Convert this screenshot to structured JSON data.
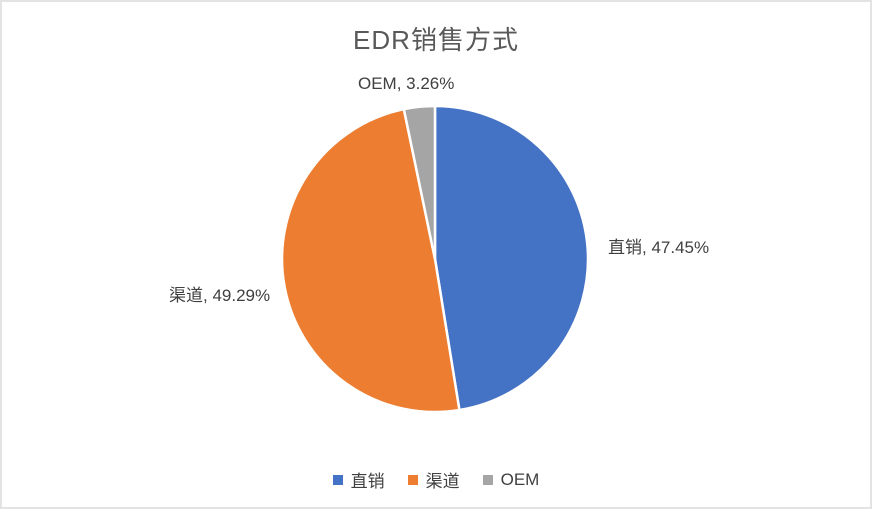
{
  "window": {
    "background": "#ffffff",
    "border_color": "#e3e3e3"
  },
  "chart_data": {
    "type": "pie",
    "title": "EDR销售方式",
    "title_color": "#595959",
    "data_label_color": "#404040",
    "legend_text_color": "#404040",
    "legend_position": "bottom",
    "start_angle_deg": 0,
    "direction": "clockwise",
    "slice_border_color": "#ffffff",
    "grid": false,
    "series": [
      {
        "label": "直销",
        "value": 47.45,
        "color": "#4472C4",
        "data_label": "直销, 47.45%"
      },
      {
        "label": "渠道",
        "value": 49.29,
        "color": "#ED7D31",
        "data_label": "渠道, 49.29%"
      },
      {
        "label": "OEM",
        "value": 3.26,
        "color": "#A5A5A5",
        "data_label": "OEM, 3.26%"
      }
    ],
    "legend_labels": [
      "直销",
      "渠道",
      "OEM"
    ]
  }
}
